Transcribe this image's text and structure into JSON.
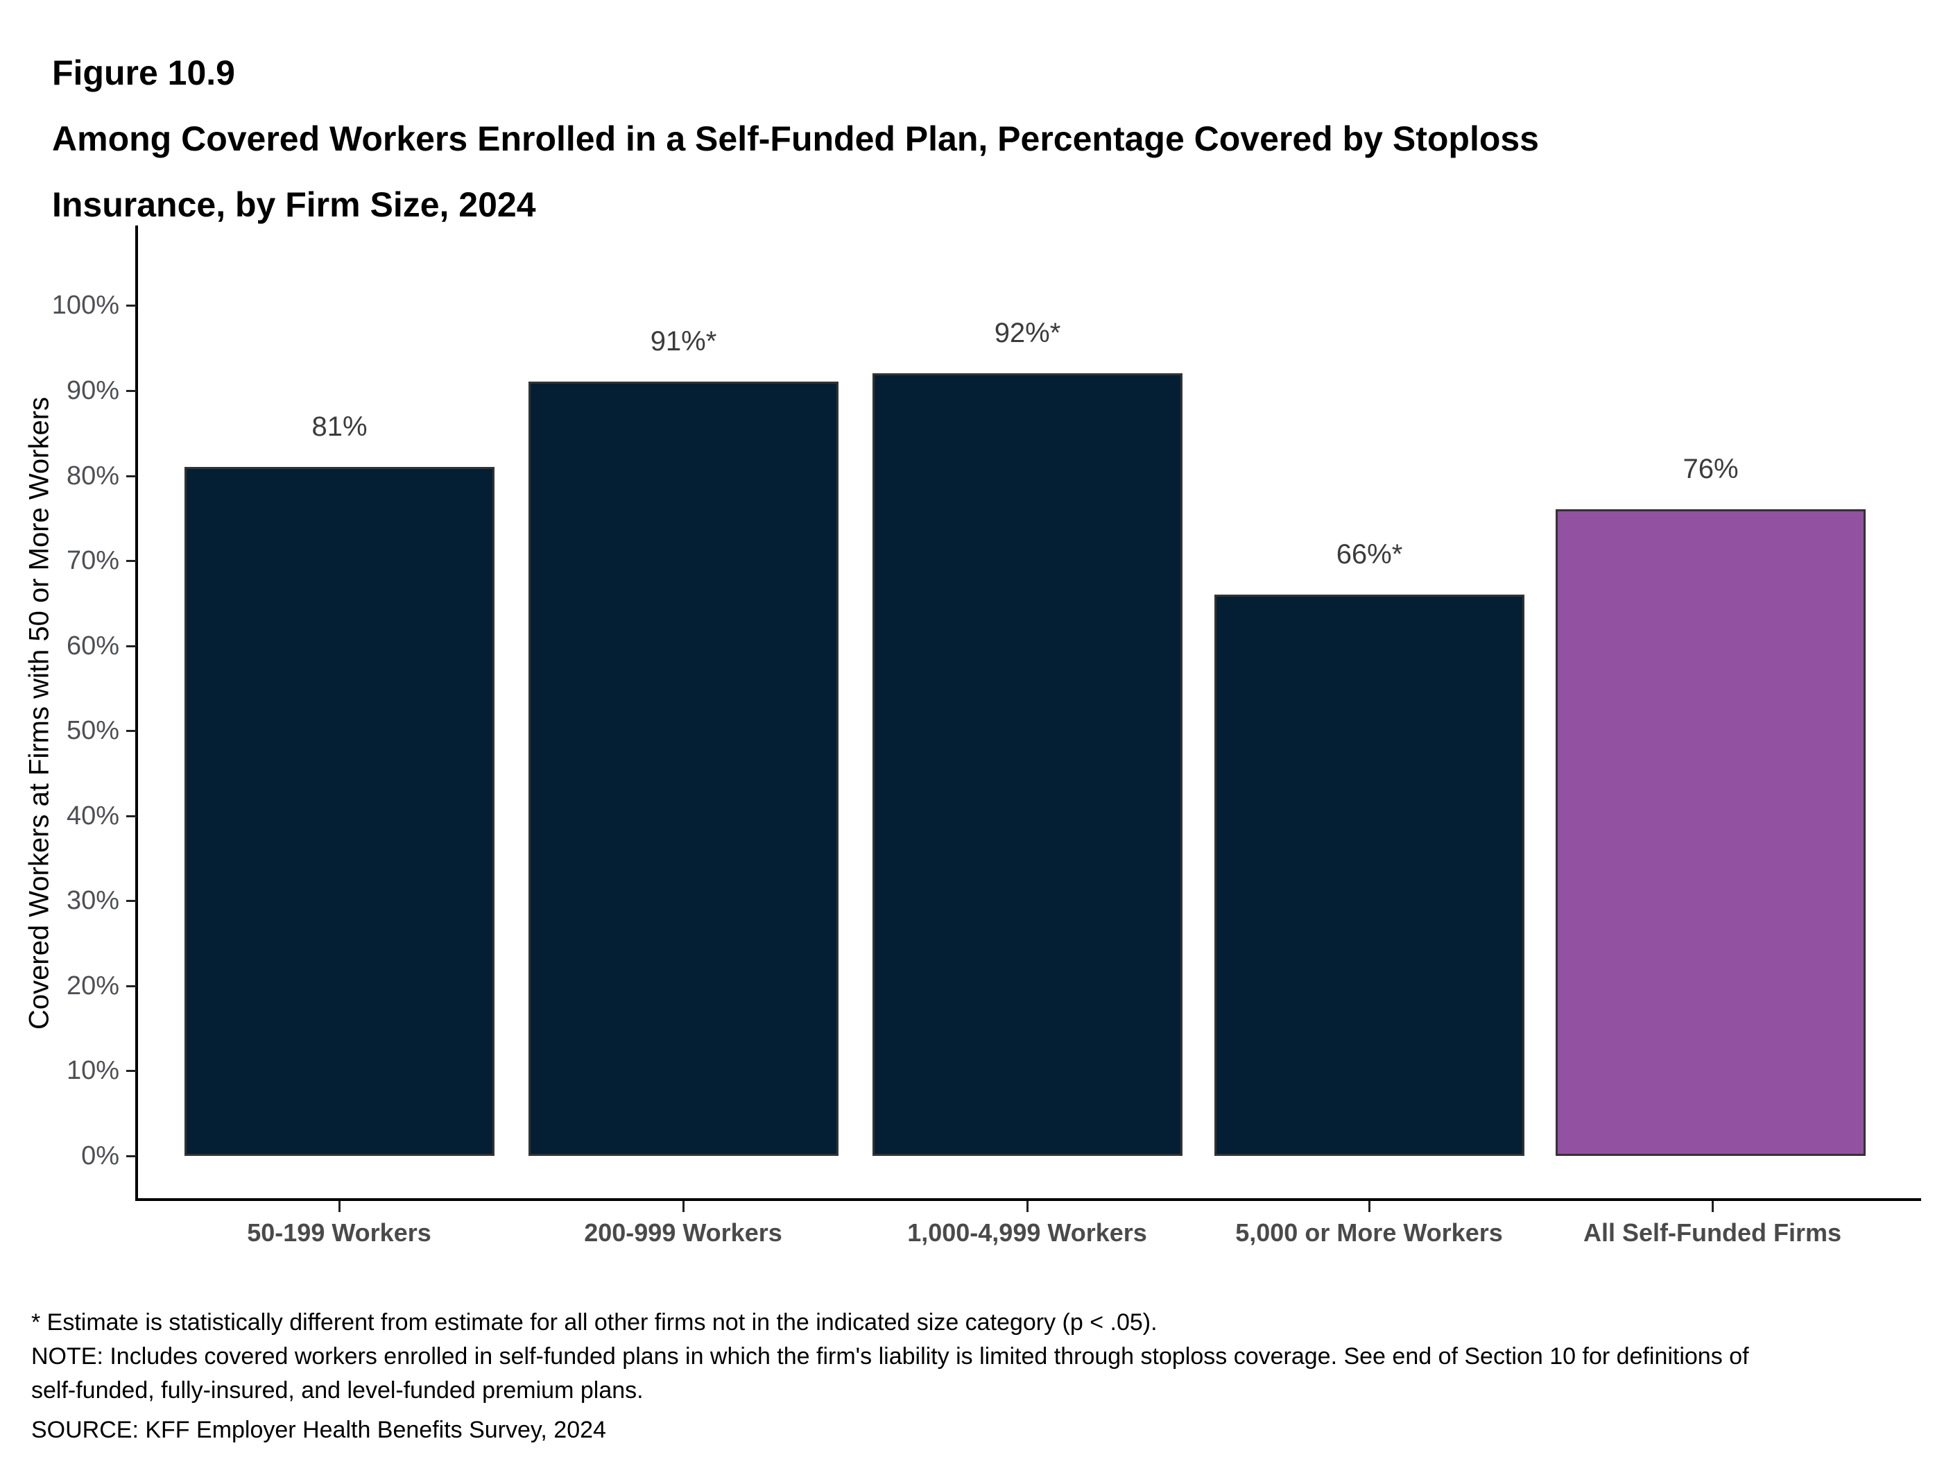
{
  "figure_label": "Figure 10.9",
  "title_lines": [
    "Among Covered Workers Enrolled in a Self-Funded Plan, Percentage Covered by Stoploss",
    "Insurance, by Firm Size, 2024"
  ],
  "chart_data": {
    "type": "bar",
    "title": "Among Covered Workers Enrolled in a Self-Funded Plan, Percentage Covered by Stoploss Insurance, by Firm Size, 2024",
    "categories": [
      "50-199 Workers",
      "200-999 Workers",
      "1,000-4,999 Workers",
      "5,000 or More Workers",
      "All Self-Funded Firms"
    ],
    "values": [
      81,
      91,
      92,
      66,
      76
    ],
    "labels": [
      "81%",
      "91%*",
      "92%*",
      "66%*",
      "76%"
    ],
    "xlabel": "",
    "ylabel": "Covered Workers at Firms with 50 or More Workers",
    "ylim": [
      0,
      100
    ],
    "ytick_labels": [
      "0%",
      "10%",
      "20%",
      "30%",
      "40%",
      "50%",
      "60%",
      "70%",
      "80%",
      "90%",
      "100%"
    ],
    "grid": false,
    "legend": false,
    "bar_colors": [
      "#041E34",
      "#041E34",
      "#041E34",
      "#041E34",
      "#9351A2"
    ],
    "bar_border_color": "#333333"
  },
  "footnotes": {
    "star_note": "* Estimate is statistically different from estimate for all other firms not in the indicated size category (p < .05).",
    "note": "NOTE: Includes covered workers enrolled in self-funded plans in which the firm's liability is limited through stoploss coverage. See end of Section 10 for definitions of self-funded, fully-insured, and level-funded premium plans.",
    "source": "SOURCE: KFF Employer Health Benefits Survey, 2024"
  },
  "colors": {
    "navy": "#041E34",
    "purple": "#9351A2",
    "axis": "#000000",
    "tick_label": "#4d4f54",
    "category_label": "#4a4a4a",
    "value_label": "#3b3b3b"
  }
}
